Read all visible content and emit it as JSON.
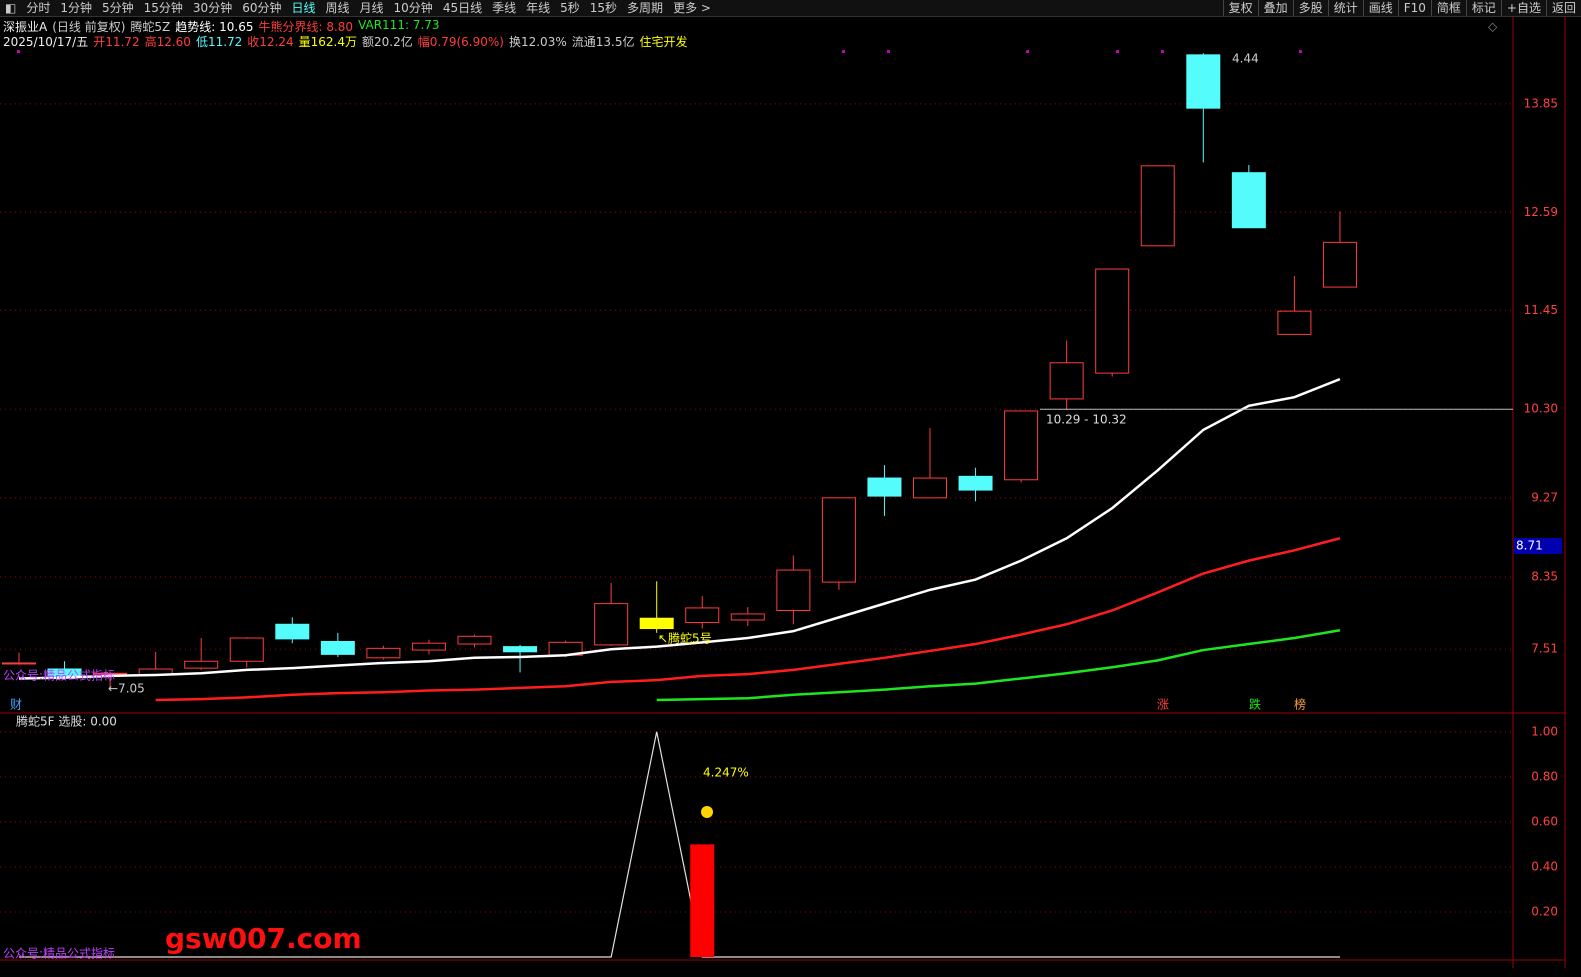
{
  "toolbar": {
    "periods": [
      "分时",
      "1分钟",
      "5分钟",
      "15分钟",
      "30分钟",
      "60分钟",
      "日线",
      "周线",
      "月线",
      "10分钟",
      "45日线",
      "季线",
      "年线",
      "5秒",
      "15秒",
      "多周期",
      "更多 >"
    ],
    "tools": [
      "复权",
      "叠加",
      "多股",
      "统计",
      "画线",
      "F10",
      "简框",
      "标记",
      "+自选",
      "返回"
    ]
  },
  "info": {
    "line1": [
      "深振业A",
      "(日线 前复权)",
      "腾蛇5Z",
      "趋势线: 10.65",
      "牛熊分界线: 8.80",
      "VAR111: 7.73"
    ],
    "line2": [
      "2025/10/17/五",
      "开11.72",
      "高12.60",
      "低11.72",
      "收12.24",
      "量162.4万",
      "额20.2亿",
      "幅0.79(6.90%)",
      "换12.03%",
      "流通13.5亿",
      "住宅开发"
    ]
  },
  "markers": [
    "财",
    "涨",
    "跌",
    "榜"
  ],
  "watermark": {
    "site": "gsw007.com",
    "account": "公众号:精品公式指标"
  },
  "chart_data": [
    {
      "type": "candlestick",
      "ylim": [
        6.78,
        14.86
      ],
      "yticks": [
        7.51,
        8.35,
        9.27,
        {
          "value": 10.3,
          "label": "10.30"
        },
        11.45,
        12.59,
        13.85
      ],
      "grid": true,
      "open": [
        7.34,
        7.28,
        7.22,
        7.21,
        7.29,
        7.37,
        7.8,
        7.6,
        7.41,
        7.5,
        7.57,
        7.54,
        7.44,
        7.56,
        7.87,
        7.82,
        7.85,
        7.96,
        8.29,
        9.5,
        9.27,
        9.52,
        9.48,
        10.42,
        10.72,
        12.2,
        14.42,
        13.05,
        11.17,
        11.72
      ],
      "high": [
        7.47,
        7.37,
        7.25,
        7.48,
        7.64,
        7.65,
        7.88,
        7.7,
        7.55,
        7.62,
        7.68,
        7.56,
        7.61,
        8.28,
        8.3,
        8.13,
        8.0,
        8.6,
        9.27,
        9.65,
        10.08,
        9.62,
        10.28,
        11.1,
        11.93,
        13.13,
        14.44,
        13.14,
        11.85,
        12.6
      ],
      "low": [
        7.33,
        7.19,
        7.05,
        7.2,
        7.27,
        7.3,
        7.58,
        7.42,
        7.39,
        7.45,
        7.53,
        7.24,
        7.42,
        7.55,
        7.7,
        7.75,
        7.78,
        7.8,
        8.2,
        9.06,
        9.27,
        9.23,
        9.45,
        10.29,
        10.68,
        12.2,
        13.17,
        12.41,
        11.17,
        11.72
      ],
      "close": [
        7.35,
        7.2,
        7.23,
        7.28,
        7.37,
        7.64,
        7.63,
        7.45,
        7.52,
        7.58,
        7.66,
        7.48,
        7.59,
        8.04,
        7.75,
        7.99,
        7.92,
        8.43,
        9.27,
        9.29,
        9.5,
        9.36,
        10.28,
        10.84,
        11.93,
        13.13,
        13.8,
        12.41,
        11.44,
        12.24
      ],
      "colors": [
        "#ff3c3c",
        "#54fcfc",
        "#ff3c3c",
        "#ff3c3c",
        "#ff3c3c",
        "#ff3c3c",
        "#54fcfc",
        "#54fcfc",
        "#ff3c3c",
        "#ff3c3c",
        "#ff3c3c",
        "#54fcfc",
        "#ff3c3c",
        "#ff3c3c",
        "#ffff00",
        "#ff3c3c",
        "#ff3c3c",
        "#ff3c3c",
        "#ff3c3c",
        "#54fcfc",
        "#ff3c3c",
        "#54fcfc",
        "#ff3c3c",
        "#ff3c3c",
        "#ff3c3c",
        "#ff3c3c",
        "#54fcfc",
        "#54fcfc",
        "#ff3c3c",
        "#ff3c3c"
      ],
      "series": [
        {
          "color": "#ffffff",
          "values": [
            7.17,
            7.18,
            7.2,
            7.21,
            7.23,
            7.27,
            7.29,
            7.32,
            7.35,
            7.37,
            7.41,
            7.42,
            7.44,
            7.51,
            7.54,
            7.59,
            7.64,
            7.72,
            7.88,
            8.04,
            8.2,
            8.32,
            8.54,
            8.8,
            9.15,
            9.59,
            10.06,
            10.34,
            10.44,
            10.65
          ]
        },
        {
          "color": "#ff1e1e",
          "values": [
            null,
            null,
            null,
            6.92,
            6.93,
            6.95,
            6.98,
            7.0,
            7.01,
            7.03,
            7.04,
            7.06,
            7.08,
            7.13,
            7.15,
            7.2,
            7.22,
            7.27,
            7.34,
            7.41,
            7.49,
            7.57,
            7.68,
            7.8,
            7.96,
            8.17,
            8.39,
            8.54,
            8.66,
            8.8
          ]
        },
        {
          "color": "#1ee61e",
          "values": [
            null,
            null,
            null,
            null,
            null,
            null,
            null,
            null,
            null,
            null,
            null,
            null,
            null,
            null,
            6.92,
            6.93,
            6.94,
            6.98,
            7.01,
            7.04,
            7.08,
            7.11,
            7.17,
            7.23,
            7.3,
            7.38,
            7.5,
            7.57,
            7.64,
            7.73
          ]
        }
      ],
      "hline": 10.3,
      "price_box": {
        "value": 8.71,
        "label": "8.71"
      },
      "annotations": [
        "↖腾蛇5号",
        "←7.05",
        "4.44",
        "10.29 - 10.32"
      ]
    },
    {
      "type": "line",
      "title": "腾蛇5F 选股: 0.00",
      "ylim": [
        0,
        1.07
      ],
      "yticks": [
        {
          "value": 0.2,
          "label": "0.20"
        },
        {
          "value": 0.4,
          "label": "0.40"
        },
        {
          "value": 0.6,
          "label": "0.60"
        },
        {
          "value": 0.8,
          "label": "0.80"
        },
        {
          "value": 1,
          "label": "1.00"
        }
      ],
      "grid": true,
      "series": [
        {
          "type": "line",
          "color": "#e0e0e0",
          "values": [
            0,
            0,
            0,
            0,
            0,
            0,
            0,
            0,
            0,
            0,
            0,
            0,
            0,
            0,
            1,
            0,
            0,
            0,
            0,
            0,
            0,
            0,
            0,
            0,
            0,
            0,
            0,
            0,
            0,
            0
          ]
        },
        {
          "type": "bar",
          "color": "#ff0000",
          "values": [
            null,
            null,
            null,
            null,
            null,
            null,
            null,
            null,
            null,
            null,
            null,
            null,
            null,
            null,
            null,
            0.5,
            null,
            null,
            null,
            null,
            null,
            null,
            null,
            null,
            null,
            null,
            null,
            null,
            null,
            null
          ]
        }
      ],
      "annotations": [
        "4.247%"
      ]
    }
  ]
}
